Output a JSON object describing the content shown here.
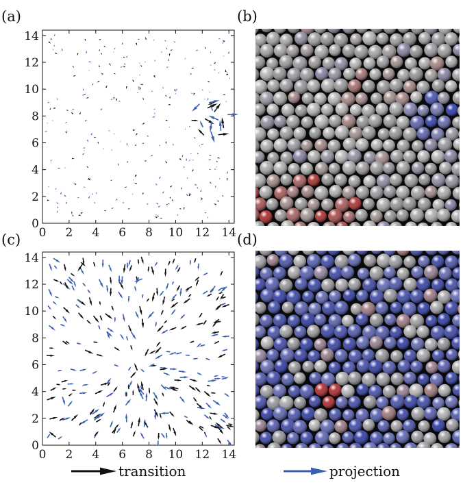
{
  "figure": {
    "panels": [
      {
        "label": "(a)",
        "kind": "vector-field"
      },
      {
        "label": "(b)",
        "kind": "particle-rendering"
      },
      {
        "label": "(c)",
        "kind": "vector-field"
      },
      {
        "label": "(d)",
        "kind": "particle-rendering"
      }
    ],
    "legend": {
      "transition_label": "transition",
      "projection_label": "projection",
      "transition_color": "#111111",
      "projection_color": "#3b5fb0"
    }
  },
  "chart_data": [
    {
      "type": "scatter",
      "panel": "(a)",
      "xlim": [
        0,
        14.4
      ],
      "ylim": [
        0,
        14.4
      ],
      "xticks": [
        "0",
        "2",
        "4",
        "6",
        "8",
        "10",
        "12",
        "14"
      ],
      "yticks": [
        "0",
        "2",
        "4",
        "6",
        "8",
        "10",
        "12",
        "14"
      ],
      "series": [
        {
          "name": "transition",
          "points": [
            [
              12.4,
              8.6
            ],
            [
              12.9,
              8.3
            ],
            [
              13.6,
              7.1
            ],
            [
              12.2,
              7.8
            ],
            [
              13.2,
              6.6
            ]
          ]
        },
        {
          "name": "projection",
          "points": [
            [
              11.8,
              8.9
            ],
            [
              12.7,
              7.6
            ],
            [
              13.9,
              8.1
            ],
            [
              12.5,
              9.0
            ],
            [
              13.4,
              6.9
            ]
          ]
        }
      ]
    },
    {
      "type": "scatter",
      "panel": "(c)",
      "xlim": [
        0,
        14.4
      ],
      "ylim": [
        0,
        14.4
      ],
      "xticks": [
        "0",
        "2",
        "4",
        "6",
        "8",
        "10",
        "12",
        "14"
      ],
      "yticks": [
        "0",
        "2",
        "4",
        "6",
        "8",
        "10",
        "12",
        "14"
      ],
      "series": [
        {
          "name": "transition",
          "points": [
            [
              3.0,
              13.5
            ],
            [
              10.2,
              4.2
            ],
            [
              1.0,
              0.6
            ],
            [
              13.5,
              1.3
            ]
          ]
        },
        {
          "name": "projection",
          "points": [
            [
              3.4,
              1.9
            ],
            [
              9.5,
              2.4
            ],
            [
              1.5,
              3.6
            ],
            [
              7.5,
              12.4
            ]
          ]
        }
      ]
    }
  ]
}
